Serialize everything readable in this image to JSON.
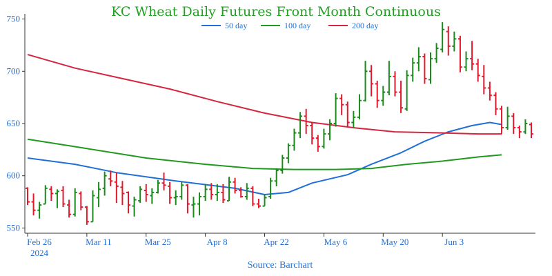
{
  "chart_data": {
    "type": "ohlc",
    "title": "KC Wheat Daily Futures Front Month Continuous",
    "source": "Source: Barchart",
    "xlabel": "",
    "ylabel": "",
    "ylim": [
      545,
      755
    ],
    "y_ticks": [
      550,
      600,
      650,
      700,
      750
    ],
    "x_ticks": [
      {
        "index": 0,
        "label": "Feb 26",
        "sublabel": "2024"
      },
      {
        "index": 10,
        "label": "Mar 11"
      },
      {
        "index": 20,
        "label": "Mar 25"
      },
      {
        "index": 30,
        "label": "Apr 8"
      },
      {
        "index": 40,
        "label": "Apr 22"
      },
      {
        "index": 50,
        "label": "May 6"
      },
      {
        "index": 60,
        "label": "May 20"
      },
      {
        "index": 70,
        "label": "Jun 3"
      }
    ],
    "colors": {
      "title": "#22a022",
      "up": "#1a8a1a",
      "down": "#e0192b",
      "ma50": "#1f6fd6",
      "ma100": "#1f9a1f",
      "ma200": "#d4263e",
      "axis": "#333333",
      "tick_label": "#1f6fd6",
      "source": "#1f6fd6"
    },
    "legend": [
      {
        "name": "50 day",
        "key": "ma50"
      },
      {
        "name": "100 day",
        "key": "ma100"
      },
      {
        "name": "200 day",
        "key": "ma200"
      }
    ],
    "ohlc": [
      [
        588,
        589,
        572,
        575
      ],
      [
        575,
        583,
        562,
        567
      ],
      [
        567,
        575,
        559,
        572
      ],
      [
        573,
        591,
        573,
        588
      ],
      [
        587,
        590,
        576,
        583
      ],
      [
        583,
        587,
        569,
        585
      ],
      [
        586,
        590,
        570,
        573
      ],
      [
        572,
        577,
        560,
        563
      ],
      [
        563,
        588,
        561,
        584
      ],
      [
        583,
        585,
        567,
        570
      ],
      [
        570,
        571,
        553,
        556
      ],
      [
        556,
        586,
        556,
        581
      ],
      [
        579,
        594,
        570,
        587
      ],
      [
        588,
        604,
        581,
        600
      ],
      [
        597,
        605,
        590,
        595
      ],
      [
        594,
        603,
        574,
        590
      ],
      [
        589,
        595,
        572,
        583
      ],
      [
        584,
        585,
        564,
        572
      ],
      [
        571,
        580,
        561,
        577
      ],
      [
        576,
        590,
        574,
        587
      ],
      [
        586,
        592,
        575,
        582
      ],
      [
        581,
        588,
        573,
        584
      ],
      [
        584,
        596,
        583,
        593
      ],
      [
        593,
        603,
        586,
        591
      ],
      [
        590,
        594,
        573,
        579
      ],
      [
        579,
        586,
        572,
        580
      ],
      [
        580,
        594,
        577,
        591
      ],
      [
        591,
        592,
        564,
        573
      ],
      [
        572,
        580,
        560,
        573
      ],
      [
        573,
        584,
        562,
        580
      ],
      [
        580,
        592,
        576,
        587
      ],
      [
        587,
        593,
        577,
        582
      ],
      [
        582,
        592,
        576,
        584
      ],
      [
        584,
        592,
        574,
        577
      ],
      [
        576,
        599,
        576,
        594
      ],
      [
        594,
        598,
        583,
        586
      ],
      [
        586,
        589,
        579,
        580
      ],
      [
        580,
        593,
        577,
        588
      ],
      [
        588,
        590,
        571,
        573
      ],
      [
        573,
        578,
        569,
        571
      ],
      [
        571,
        582,
        571,
        579
      ],
      [
        580,
        598,
        578,
        595
      ],
      [
        595,
        607,
        590,
        605
      ],
      [
        605,
        620,
        602,
        617
      ],
      [
        617,
        631,
        612,
        629
      ],
      [
        629,
        645,
        624,
        641
      ],
      [
        641,
        661,
        636,
        657
      ],
      [
        657,
        664,
        640,
        648
      ],
      [
        648,
        651,
        630,
        636
      ],
      [
        636,
        639,
        623,
        628
      ],
      [
        628,
        645,
        626,
        640
      ],
      [
        640,
        654,
        634,
        650
      ],
      [
        650,
        679,
        647,
        674
      ],
      [
        674,
        678,
        658,
        668
      ],
      [
        668,
        671,
        647,
        651
      ],
      [
        651,
        662,
        646,
        656
      ],
      [
        656,
        678,
        654,
        672
      ],
      [
        672,
        710,
        671,
        700
      ],
      [
        700,
        706,
        676,
        688
      ],
      [
        688,
        691,
        665,
        672
      ],
      [
        672,
        686,
        667,
        680
      ],
      [
        680,
        710,
        677,
        695
      ],
      [
        695,
        700,
        676,
        680
      ],
      [
        680,
        691,
        660,
        665
      ],
      [
        664,
        701,
        662,
        696
      ],
      [
        696,
        713,
        690,
        708
      ],
      [
        708,
        723,
        700,
        714
      ],
      [
        714,
        717,
        688,
        693
      ],
      [
        692,
        718,
        688,
        712
      ],
      [
        712,
        727,
        708,
        722
      ],
      [
        721,
        747,
        718,
        740
      ],
      [
        738,
        743,
        715,
        724
      ],
      [
        724,
        738,
        719,
        731
      ],
      [
        731,
        734,
        699,
        704
      ],
      [
        704,
        719,
        700,
        712
      ],
      [
        712,
        729,
        701,
        707
      ],
      [
        707,
        712,
        690,
        696
      ],
      [
        695,
        706,
        678,
        684
      ],
      [
        684,
        690,
        672,
        677
      ],
      [
        677,
        680,
        658,
        664
      ],
      [
        664,
        667,
        640,
        646
      ],
      [
        646,
        666,
        644,
        657
      ],
      [
        657,
        660,
        640,
        646
      ],
      [
        646,
        648,
        636,
        642
      ],
      [
        642,
        654,
        640,
        650
      ],
      [
        649,
        651,
        636,
        640
      ]
    ],
    "series": [
      {
        "name": "50 day",
        "key": "ma50",
        "values": [
          [
            0,
            617
          ],
          [
            8,
            611
          ],
          [
            15,
            603
          ],
          [
            25,
            595
          ],
          [
            35,
            588
          ],
          [
            40,
            582
          ],
          [
            44,
            584
          ],
          [
            48,
            593
          ],
          [
            54,
            601
          ],
          [
            58,
            611
          ],
          [
            63,
            622
          ],
          [
            67,
            633
          ],
          [
            71,
            642
          ],
          [
            75,
            648
          ],
          [
            78,
            651
          ],
          [
            80,
            649
          ]
        ]
      },
      {
        "name": "100 day",
        "key": "ma100",
        "values": [
          [
            0,
            635
          ],
          [
            10,
            626
          ],
          [
            20,
            617
          ],
          [
            30,
            611
          ],
          [
            38,
            607
          ],
          [
            45,
            606
          ],
          [
            52,
            606
          ],
          [
            58,
            607
          ],
          [
            64,
            611
          ],
          [
            70,
            614
          ],
          [
            76,
            618
          ],
          [
            80,
            620
          ]
        ]
      },
      {
        "name": "200 day",
        "key": "ma200",
        "values": [
          [
            0,
            716
          ],
          [
            8,
            703
          ],
          [
            16,
            693
          ],
          [
            24,
            683
          ],
          [
            32,
            671
          ],
          [
            40,
            660
          ],
          [
            48,
            651
          ],
          [
            55,
            646
          ],
          [
            62,
            642
          ],
          [
            70,
            641
          ],
          [
            76,
            640
          ],
          [
            80,
            640
          ]
        ]
      }
    ]
  }
}
